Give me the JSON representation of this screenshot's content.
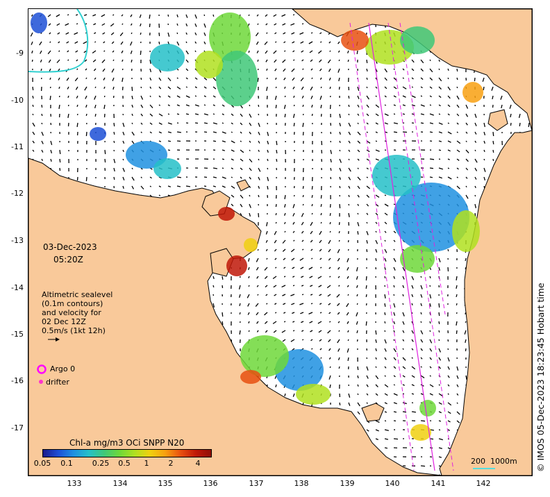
{
  "map": {
    "date": "03-Dec-2023",
    "time": "05:20Z",
    "credit": "© IMOS 05-Dec-2023 18:23:45 Hobart time",
    "latitude_ticks": [
      "-9",
      "-10",
      "-11",
      "-12",
      "-13",
      "-14",
      "-15",
      "-16",
      "-17"
    ],
    "longitude_ticks": [
      "133",
      "134",
      "135",
      "136",
      "137",
      "138",
      "139",
      "140",
      "141",
      "142"
    ],
    "velocity_note": [
      "Altimetric sealevel",
      "(0.1m contours)",
      "and velocity for",
      "02 Dec 12Z",
      "0.5m/s (1kt 12h)"
    ],
    "legend": {
      "argo_label": "Argo 0",
      "drifter_label": "drifter",
      "argo_color": "#ff00ff",
      "drifter_color": "#ff33cc"
    },
    "scale_bar": {
      "label_200": "200",
      "label_1000": "1000m",
      "color": "#55dddd"
    },
    "land_color": "#f9c99a",
    "colorbar": {
      "title": "Chl-a mg/m3 OCi SNPP N20",
      "ticks": [
        "0.05",
        "0.1",
        "0.25",
        "0.5",
        "1",
        "2",
        "4"
      ],
      "palette": [
        "#1a1a8c",
        "#1c4fd6",
        "#1e90e0",
        "#25c0c8",
        "#40c878",
        "#6ed83a",
        "#b0e020",
        "#f0d010",
        "#f8a010",
        "#e85010",
        "#c01808",
        "#901008"
      ]
    }
  }
}
